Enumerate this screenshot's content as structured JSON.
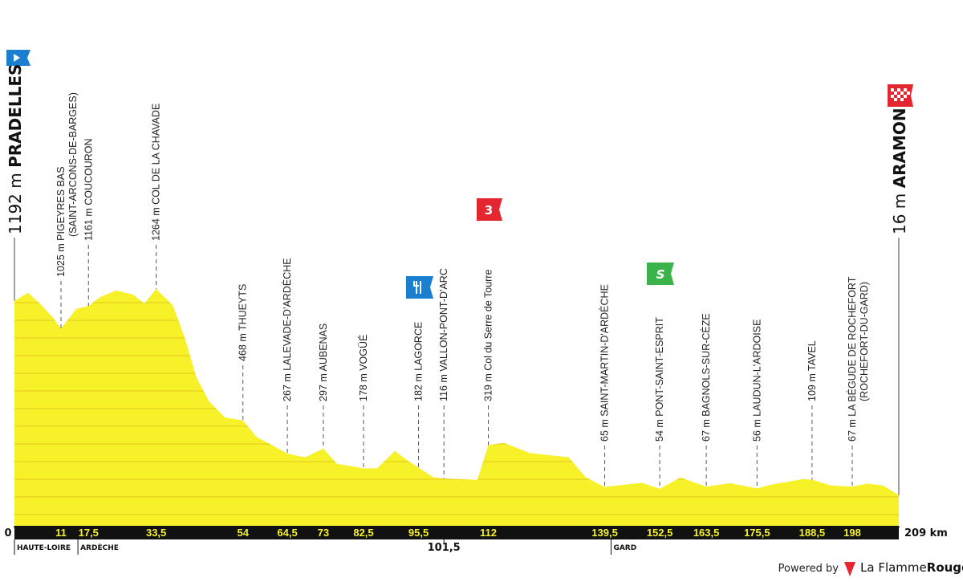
{
  "chart_data": {
    "type": "area",
    "color": "#f7f12a",
    "grid_color": "#e0c81c",
    "x": [
      0,
      3.2,
      6,
      9,
      11,
      14.6,
      17.5,
      20.3,
      24,
      28,
      30.7,
      33.5,
      37.4,
      40.2,
      43,
      46,
      49.7,
      54,
      57.3,
      61,
      64.5,
      68.7,
      73,
      76.2,
      82.5,
      85.7,
      89.9,
      92.4,
      95.5,
      99,
      101.5,
      109.4,
      112,
      115.7,
      121.8,
      131,
      135,
      139.5,
      148.3,
      152.5,
      157.4,
      163.5,
      169.2,
      175.5,
      178.6,
      186.2,
      188.5,
      192.9,
      198,
      201.4,
      205.2,
      209
    ],
    "values": [
      1192,
      1240,
      1176,
      1093,
      1025,
      1143,
      1161,
      1215,
      1254,
      1230,
      1176,
      1264,
      1166,
      972,
      729,
      583,
      486,
      468,
      366,
      317,
      267,
      245,
      297,
      205,
      178,
      178,
      283,
      235,
      182,
      124,
      116,
      108,
      319,
      332,
      270,
      245,
      124,
      65,
      90,
      54,
      122,
      67,
      88,
      56,
      78,
      112,
      109,
      75,
      67,
      85,
      75,
      16
    ],
    "xlim": [
      0,
      209
    ],
    "ylim": [
      -170,
      1555
    ],
    "xticks": [
      0,
      11,
      {
        "value": 17.5,
        "label": "17,5"
      },
      {
        "value": 33.5,
        "label": "33,5"
      },
      54,
      {
        "value": 64.5,
        "label": "64,5"
      },
      73,
      {
        "value": 82.5,
        "label": "82,5"
      },
      {
        "value": 95.5,
        "label": "95,5"
      },
      112,
      {
        "value": 139.5,
        "label": "139,5"
      },
      {
        "value": 152.5,
        "label": "152,5"
      },
      {
        "value": 163.5,
        "label": "163,5"
      },
      {
        "value": 175.5,
        "label": "175,5"
      },
      {
        "value": 188.5,
        "label": "188,5"
      },
      198,
      {
        "value": 209,
        "label": "209 km"
      }
    ],
    "mid_tick": {
      "value": 101.5,
      "label": "101,5"
    },
    "start": {
      "x": 0,
      "elevation": "1192 m",
      "name": "PRADELLES"
    },
    "finish": {
      "x": 209,
      "elevation": "16 m",
      "name": "ARAMON"
    },
    "waypoints": [
      {
        "x": 11,
        "label": "1025 m PIGEYRES BAS",
        "sublabel": "(SAINT-ARCONS-DE-BARGES)"
      },
      {
        "x": 17.5,
        "label": "1161 m COUCOURON"
      },
      {
        "x": 33.5,
        "label": "1264 m COL DE LA CHAVADE"
      },
      {
        "x": 54,
        "label": "468 m THUEYTS"
      },
      {
        "x": 64.5,
        "label": "267 m LALEVADE-D'ARDÈCHE"
      },
      {
        "x": 73,
        "label": "297 m AUBENAS"
      },
      {
        "x": 82.5,
        "label": "178 m VOGÜÉ"
      },
      {
        "x": 95.5,
        "label": "182 m LAGORCE"
      },
      {
        "x": 101.5,
        "label": "116 m VALLON-PONT-D'ARC"
      },
      {
        "x": 112,
        "label": "319 m Col du Serre de Tourre"
      },
      {
        "x": 139.5,
        "label": "65 m SAINT-MARTIN-D'ARDÈCHE"
      },
      {
        "x": 152.5,
        "label": "54 m PONT-SAINT-ESPRIT"
      },
      {
        "x": 163.5,
        "label": "67 m BAGNOLS-SUR-CÈZE"
      },
      {
        "x": 175.5,
        "label": "56 m LAUDUN-L'ARDOISE"
      },
      {
        "x": 188.5,
        "label": "109 m TAVEL"
      },
      {
        "x": 198,
        "label": "67 m LA BÉGUDE DE ROCHEFORT",
        "sublabel": "(ROCHEFORT-DU-GARD)"
      }
    ],
    "regions": [
      {
        "x": 0,
        "label": "HAUTE-LOIRE"
      },
      {
        "x": 15,
        "label": "ARDÈCHE"
      },
      {
        "x": 141,
        "label": "GARD"
      }
    ],
    "climb_category": "3"
  },
  "footer": {
    "powered": "Powered by",
    "brand1": "La Flamme",
    "brand2": "Rouge"
  }
}
